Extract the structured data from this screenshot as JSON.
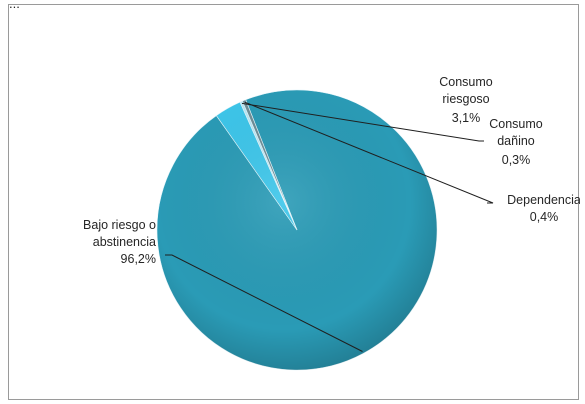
{
  "top_fragment": "...",
  "chart_data": {
    "type": "pie",
    "title": "",
    "colors": {
      "Bajo riesgo o abstinencia": "#2a9bb6",
      "Consumo riesgoso": "#3dc6ea",
      "Consumo dañino": "#b9e8f6",
      "Dependencia": "#6e8e97"
    },
    "slices": [
      {
        "label_lines": [
          "Bajo riesgo o",
          "abstinencia"
        ],
        "name": "Bajo riesgo o abstinencia",
        "value": 96.2,
        "value_label": "96,2%"
      },
      {
        "label_lines": [
          "Consumo",
          "riesgoso"
        ],
        "name": "Consumo riesgoso",
        "value": 3.1,
        "value_label": "3,1%"
      },
      {
        "label_lines": [
          "Consumo",
          "dañino"
        ],
        "name": "Consumo dañino",
        "value": 0.3,
        "value_label": "0,3%"
      },
      {
        "label_lines": [
          "Dependencia"
        ],
        "name": "Dependencia",
        "value": 0.4,
        "value_label": "0,4%"
      }
    ]
  }
}
